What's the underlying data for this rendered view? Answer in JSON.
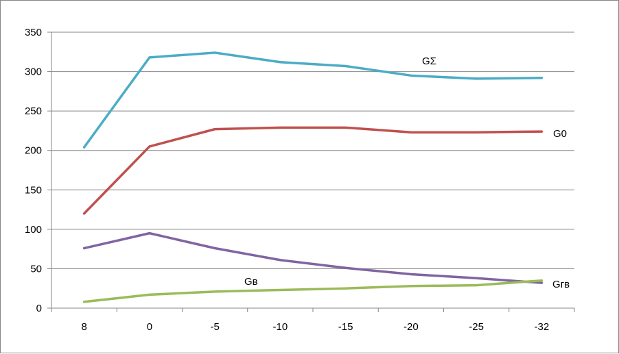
{
  "chart_data": {
    "type": "line",
    "categories": [
      "8",
      "0",
      "-5",
      "-10",
      "-15",
      "-20",
      "-25",
      "-32"
    ],
    "ylim": [
      0,
      350
    ],
    "y_ticks": [
      "0",
      "50",
      "100",
      "150",
      "200",
      "250",
      "300",
      "350"
    ],
    "grid": true,
    "legend": "none",
    "series": [
      {
        "name": "GΣ",
        "color": "#4BACC6",
        "values": [
          204,
          318,
          324,
          312,
          307,
          295,
          291,
          292
        ]
      },
      {
        "name": "G0",
        "color": "#C0504D",
        "values": [
          120,
          205,
          227,
          229,
          229,
          223,
          223,
          224
        ]
      },
      {
        "name": "",
        "color": "#8064A2",
        "values": [
          76,
          95,
          76,
          61,
          51,
          43,
          38,
          32
        ]
      },
      {
        "name": "Gв",
        "color": "#9BBB59",
        "values": [
          8,
          17,
          21,
          23,
          25,
          28,
          29,
          35
        ]
      }
    ],
    "annotations": [
      {
        "text": "GΣ",
        "series": 0
      },
      {
        "text": "G0",
        "series": 1
      },
      {
        "text": "Gв",
        "series": 3
      },
      {
        "text": "Gгв",
        "series": 2
      }
    ]
  }
}
